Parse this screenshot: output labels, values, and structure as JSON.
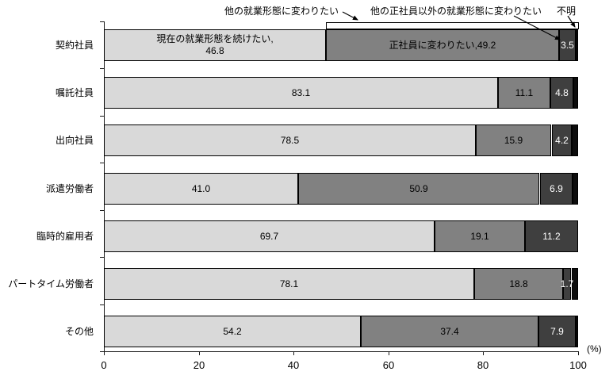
{
  "annotations": {
    "group_other": "他の就業形態に変わりたい",
    "other_nonregular": "他の正社員以外の就業形態に変わりたい",
    "unknown": "不明"
  },
  "axis": {
    "ticks": [
      0,
      20,
      40,
      60,
      80,
      100
    ],
    "unit": "(%)",
    "xlim": [
      0,
      100
    ]
  },
  "chart_data": {
    "type": "bar",
    "orientation": "horizontal-stacked",
    "categories": [
      "契約社員",
      "嘱託社員",
      "出向社員",
      "派遣労働者",
      "臨時的雇用者",
      "パートタイム労働者",
      "その他"
    ],
    "series": [
      {
        "name": "現在の就業形態を続けたい",
        "color": "#d9d9d9",
        "label_color": "#000000",
        "values": [
          46.8,
          83.1,
          78.5,
          41.0,
          69.7,
          78.1,
          54.2
        ]
      },
      {
        "name": "正社員に変わりたい",
        "color": "#818181",
        "label_color": "#000000",
        "values": [
          49.2,
          11.1,
          15.9,
          50.9,
          19.1,
          18.8,
          37.4
        ]
      },
      {
        "name": "他の正社員以外の就業形態に変わりたい",
        "color": "#3f3f3f",
        "label_color": "#ffffff",
        "values": [
          3.5,
          4.8,
          4.2,
          6.9,
          11.2,
          1.7,
          7.9
        ]
      },
      {
        "name": "不明",
        "color": "#0d0d0d",
        "label_color": "#ffffff",
        "values": [
          0.5,
          1.0,
          1.4,
          1.2,
          0.0,
          1.4,
          0.5
        ]
      }
    ],
    "value_labels": [
      [
        [
          "現在の就業形態を続けたい,",
          "46.8"
        ],
        [
          "正社員に変わりたい,49.2"
        ],
        [
          "3.5"
        ],
        []
      ],
      [
        [
          "83.1"
        ],
        [
          "11.1"
        ],
        [
          "4.8"
        ],
        []
      ],
      [
        [
          "78.5"
        ],
        [
          "15.9"
        ],
        [
          "4.2"
        ],
        []
      ],
      [
        [
          "41.0"
        ],
        [
          "50.9"
        ],
        [
          "6.9"
        ],
        []
      ],
      [
        [
          "69.7"
        ],
        [
          "19.1"
        ],
        [
          "11.2"
        ],
        []
      ],
      [
        [
          "78.1"
        ],
        [
          "18.8"
        ],
        [
          "1.7"
        ],
        []
      ],
      [
        [
          "54.2"
        ],
        [
          "37.4"
        ],
        [
          "7.9"
        ],
        []
      ]
    ],
    "xlim": [
      0,
      100
    ],
    "grid": false,
    "legend": "annotated-arrows"
  }
}
